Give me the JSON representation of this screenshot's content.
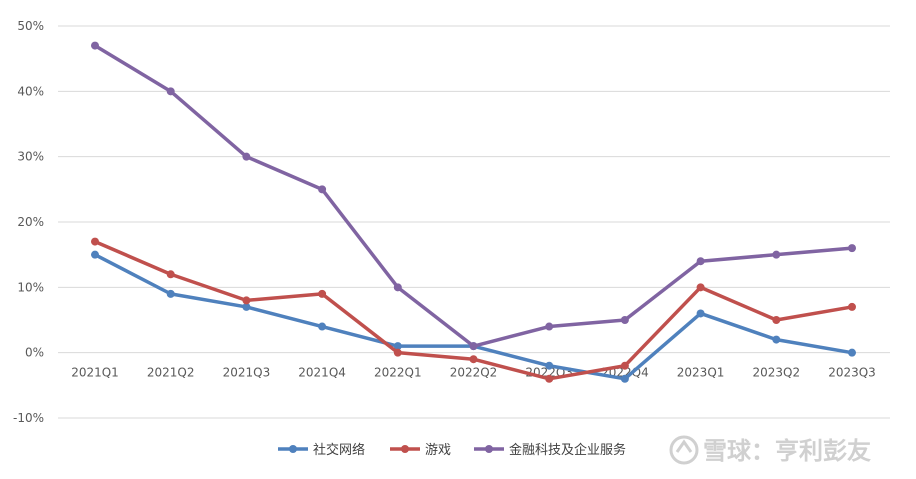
{
  "chart_data": {
    "type": "line",
    "title": "",
    "xlabel": "",
    "ylabel": "",
    "categories": [
      "2021Q1",
      "2021Q2",
      "2021Q3",
      "2021Q4",
      "2022Q1",
      "2022Q2",
      "2022Q3",
      "2022Q4",
      "2023Q1",
      "2023Q2",
      "2023Q3"
    ],
    "y_ticks": [
      "50%",
      "40%",
      "30%",
      "20%",
      "10%",
      "0%",
      "-10%"
    ],
    "y_tick_values": [
      50,
      40,
      30,
      20,
      10,
      0,
      -10
    ],
    "ylim": [
      -10,
      50
    ],
    "grid": true,
    "legend_position": "bottom",
    "series": [
      {
        "name": "社交网络",
        "color": "#4F81BD",
        "values": [
          15,
          9,
          7,
          4,
          1,
          1,
          -2,
          -4,
          6,
          2,
          0
        ]
      },
      {
        "name": "游戏",
        "color": "#C0504D",
        "values": [
          17,
          12,
          8,
          9,
          0,
          -1,
          -4,
          -2,
          10,
          5,
          7
        ]
      },
      {
        "name": "金融科技及企业服务",
        "color": "#8064A2",
        "values": [
          47,
          40,
          30,
          25,
          10,
          1,
          4,
          5,
          14,
          15,
          16
        ]
      }
    ]
  },
  "watermark": {
    "text": "雪球：亨利彭友"
  }
}
